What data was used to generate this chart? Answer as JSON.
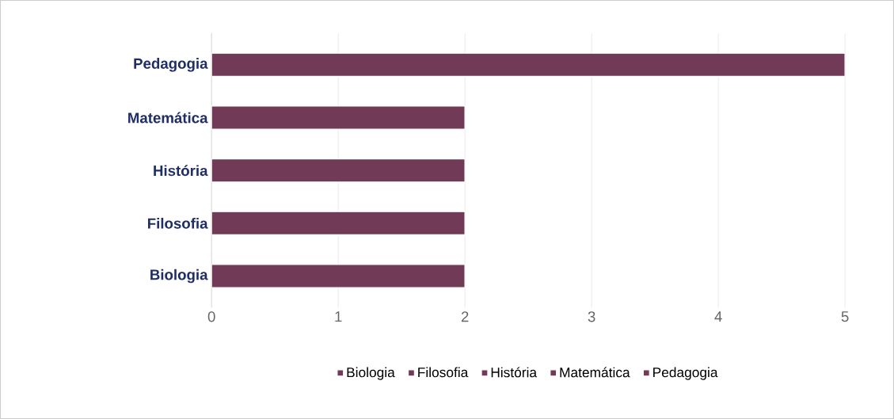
{
  "chart_data": {
    "type": "bar",
    "orientation": "horizontal",
    "categories": [
      "Pedagogia",
      "Matemática",
      "História",
      "Filosofia",
      "Biologia"
    ],
    "series": [
      {
        "name": "Biologia",
        "color": "#713a56",
        "values": [
          null,
          null,
          null,
          null,
          2
        ]
      },
      {
        "name": "Filosofia",
        "color": "#713a56",
        "values": [
          null,
          null,
          null,
          2,
          null
        ]
      },
      {
        "name": "História",
        "color": "#713a56",
        "values": [
          null,
          null,
          2,
          null,
          null
        ]
      },
      {
        "name": "Matemática",
        "color": "#713a56",
        "values": [
          null,
          2,
          null,
          null,
          null
        ]
      },
      {
        "name": "Pedagogia",
        "color": "#713a56",
        "values": [
          5,
          null,
          null,
          null,
          null
        ]
      }
    ],
    "xlim": [
      0,
      5
    ],
    "xticks": [
      0,
      1,
      2,
      3,
      4,
      5
    ],
    "grid": "x",
    "legend": "bottom"
  }
}
